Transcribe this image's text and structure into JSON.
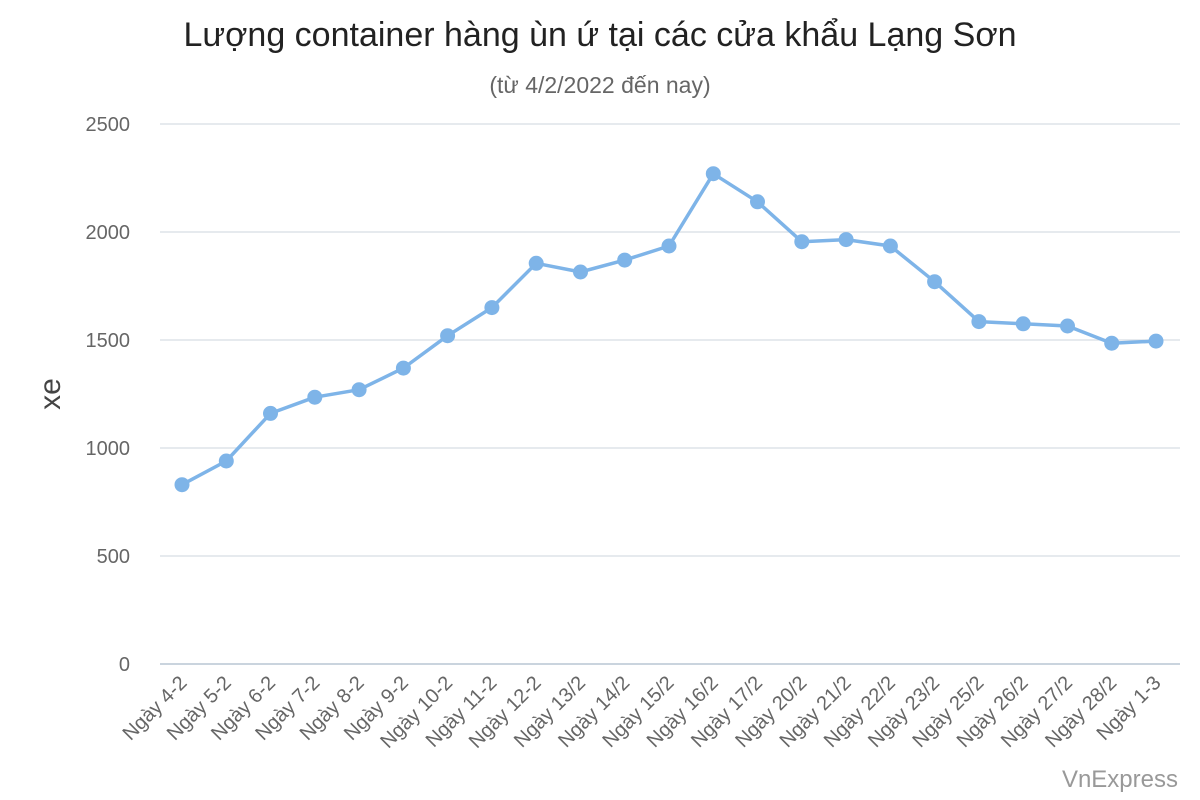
{
  "chart_data": {
    "type": "line",
    "title": "Lượng container hàng ùn ứ tại các cửa khẩu Lạng Sơn",
    "subtitle": "(từ 4/2/2022 đến nay)",
    "xlabel": "",
    "ylabel": "xe",
    "ylim": [
      0,
      2500
    ],
    "yticks": [
      0,
      500,
      1000,
      1500,
      2000,
      2500
    ],
    "grid": true,
    "legend": "none",
    "categories": [
      "Ngày 4-2",
      "Ngày 5-2",
      "Ngày 6-2",
      "Ngày 7-2",
      "Ngày 8-2",
      "Ngày 9-2",
      "Ngày 10-2",
      "Ngày 11-2",
      "Ngày 12-2",
      "Ngày 13/2",
      "Ngày 14/2",
      "Ngày 15/2",
      "Ngày 16/2",
      "Ngày 17/2",
      "Ngày 20/2",
      "Ngày 21/2",
      "Ngày 22/2",
      "Ngày 23/2",
      "Ngày 25/2",
      "Ngày 26/2",
      "Ngày 27/2",
      "Ngày 28/2",
      "Ngày 1-3"
    ],
    "series": [
      {
        "values": [
          830,
          940,
          1160,
          1235,
          1270,
          1370,
          1520,
          1650,
          1855,
          1815,
          1870,
          1935,
          2270,
          2140,
          1955,
          1965,
          1935,
          1770,
          1585,
          1575,
          1565,
          1485,
          1495
        ],
        "color": "#7eb4e8"
      }
    ]
  },
  "source": "VnExpress"
}
